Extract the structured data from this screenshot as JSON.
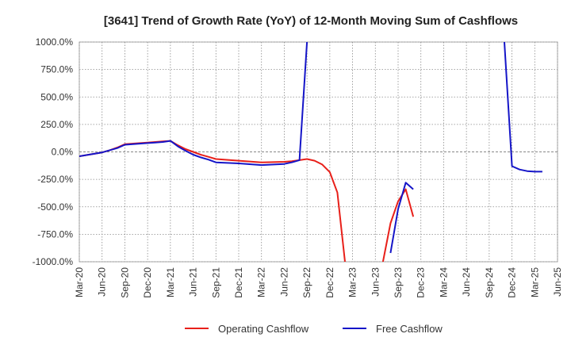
{
  "chart_data": {
    "type": "line",
    "title": "[3641]  Trend of Growth Rate (YoY) of 12-Month Moving Sum of Cashflows",
    "xlabel": "",
    "ylabel": "",
    "x_tick_labels": [
      "Mar-20",
      "Jun-20",
      "Sep-20",
      "Dec-20",
      "Mar-21",
      "Jun-21",
      "Sep-21",
      "Dec-21",
      "Mar-22",
      "Jun-22",
      "Sep-22",
      "Dec-22",
      "Mar-23",
      "Jun-23",
      "Sep-23",
      "Dec-23",
      "Mar-24",
      "Jun-24",
      "Sep-24",
      "Dec-24",
      "Mar-25",
      "Jun-25"
    ],
    "y_tick_labels": [
      "1000.0%",
      "750.0%",
      "500.0%",
      "250.0%",
      "0.0%",
      "-250.0%",
      "-500.0%",
      "-750.0%",
      "-1000.0%"
    ],
    "ylim": [
      -1000,
      1000
    ],
    "y_unit": "%",
    "grid": true,
    "legend_position": "bottom",
    "series": [
      {
        "name": "Operating Cashflow",
        "color": "#e8201a",
        "points": [
          [
            "Mar-20",
            -40
          ],
          [
            "Jun-20",
            -5
          ],
          [
            "Jul-20",
            15
          ],
          [
            "Aug-20",
            40
          ],
          [
            "Sep-20",
            70
          ],
          [
            "Dec-20",
            85
          ],
          [
            "Jan-21",
            90
          ],
          [
            "Feb-21",
            95
          ],
          [
            "Mar-21",
            100
          ],
          [
            "Apr-21",
            60
          ],
          [
            "May-21",
            25
          ],
          [
            "Jun-21",
            0
          ],
          [
            "Jul-21",
            -25
          ],
          [
            "Aug-21",
            -45
          ],
          [
            "Sep-21",
            -65
          ],
          [
            "Dec-21",
            -80
          ],
          [
            "Mar-22",
            -95
          ],
          [
            "Jun-22",
            -90
          ],
          [
            "Jul-22",
            -85
          ],
          [
            "Aug-22",
            -75
          ],
          [
            "Sep-22",
            -65
          ],
          [
            "Oct-22",
            -80
          ],
          [
            "Nov-22",
            -115
          ],
          [
            "Dec-22",
            -185
          ],
          [
            "Jan-23",
            -370
          ],
          [
            "Feb-23",
            -1000
          ],
          null,
          [
            "Jul-23",
            -1000
          ],
          [
            "Aug-23",
            -650
          ],
          [
            "Sep-23",
            -450
          ],
          [
            "Oct-23",
            -340
          ],
          [
            "Nov-23",
            -590
          ]
        ]
      },
      {
        "name": "Free Cashflow",
        "color": "#1515c8",
        "points": [
          [
            "Mar-20",
            -40
          ],
          [
            "Jun-20",
            -5
          ],
          [
            "Jul-20",
            15
          ],
          [
            "Aug-20",
            35
          ],
          [
            "Sep-20",
            65
          ],
          [
            "Dec-20",
            80
          ],
          [
            "Jan-21",
            85
          ],
          [
            "Feb-21",
            90
          ],
          [
            "Mar-21",
            100
          ],
          [
            "Apr-21",
            50
          ],
          [
            "May-21",
            10
          ],
          [
            "Jun-21",
            -25
          ],
          [
            "Jul-21",
            -50
          ],
          [
            "Aug-21",
            -70
          ],
          [
            "Sep-21",
            -95
          ],
          [
            "Dec-21",
            -105
          ],
          [
            "Mar-22",
            -120
          ],
          [
            "Jun-22",
            -110
          ],
          [
            "Jul-22",
            -95
          ],
          [
            "Aug-22",
            -75
          ],
          [
            "Sep-22",
            1000
          ],
          null,
          [
            "Aug-23",
            -920
          ],
          [
            "Sep-23",
            -520
          ],
          [
            "Oct-23",
            -280
          ],
          [
            "Nov-23",
            -340
          ],
          null,
          [
            "Nov-24",
            1000
          ],
          [
            "Dec-24",
            -130
          ],
          [
            "Jan-25",
            -160
          ],
          [
            "Feb-25",
            -175
          ],
          [
            "Mar-25",
            -180
          ],
          [
            "Apr-25",
            -180
          ]
        ]
      }
    ]
  }
}
